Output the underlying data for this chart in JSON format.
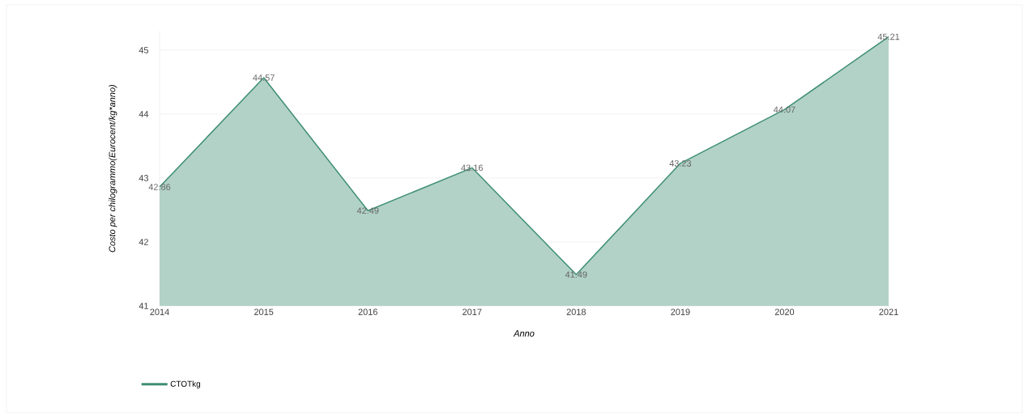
{
  "chart_data": {
    "type": "area",
    "xlabel": "Anno",
    "ylabel": "Costo per chilogrammo(Eurocent/kg*anno)",
    "categories": [
      "2014",
      "2015",
      "2016",
      "2017",
      "2018",
      "2019",
      "2020",
      "2021"
    ],
    "series": [
      {
        "name": "CTOTkg",
        "color": "#3f8f72",
        "values": [
          42.86,
          44.57,
          42.49,
          43.16,
          41.49,
          43.23,
          44.07,
          45.21
        ]
      }
    ],
    "ylim": [
      41,
      45.3
    ],
    "yticks": [
      41,
      42,
      43,
      44,
      45
    ],
    "grid": "y",
    "legend": "bottom left",
    "data_labels": true
  }
}
